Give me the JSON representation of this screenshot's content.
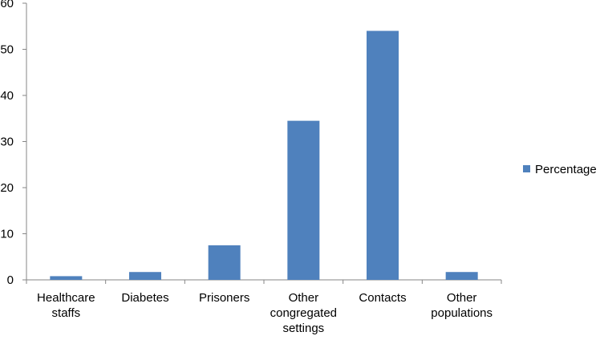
{
  "chart_data": {
    "type": "bar",
    "categories": [
      [
        "Healthcare",
        "staffs"
      ],
      [
        "Diabetes"
      ],
      [
        "Prisoners"
      ],
      [
        "Other",
        "congregated",
        "settings"
      ],
      [
        "Contacts"
      ],
      [
        "Other",
        "populations"
      ]
    ],
    "series": [
      {
        "name": "Percentage",
        "values": [
          0.8,
          1.7,
          7.5,
          34.5,
          54,
          1.7
        ],
        "color": "#4f81bd"
      }
    ],
    "ylim": [
      0,
      60
    ],
    "yticks": [
      0,
      10,
      20,
      30,
      40,
      50,
      60
    ],
    "grid": false,
    "legend_position": "right",
    "title": "",
    "xlabel": "",
    "ylabel": ""
  }
}
